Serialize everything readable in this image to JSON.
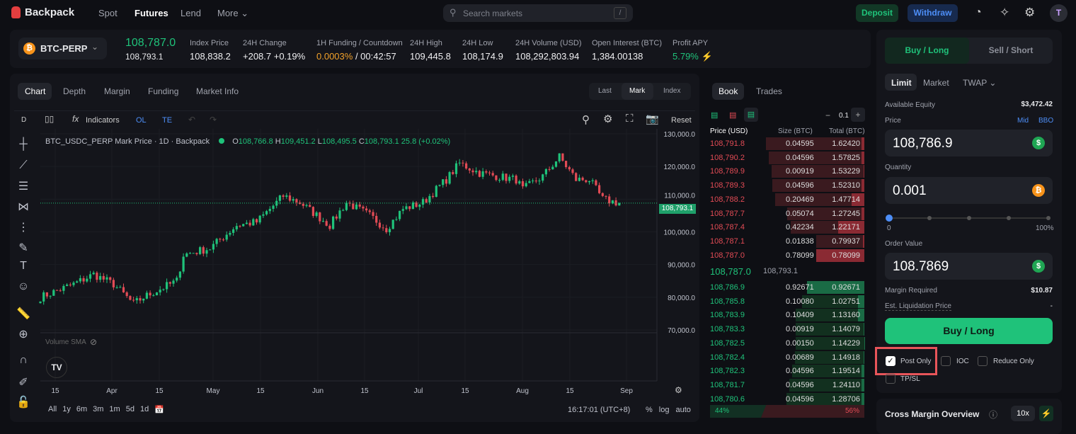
{
  "nav": {
    "brand": "Backpack",
    "links": [
      "Spot",
      "Futures",
      "Lend",
      "More"
    ],
    "search_placeholder": "Search markets",
    "search_key": "/",
    "deposit": "Deposit",
    "withdraw": "Withdraw",
    "avatar": "T"
  },
  "ticker": {
    "symbol": "BTC-PERP",
    "last": "108,787.0",
    "mark": "108,793.1",
    "stats": [
      {
        "label": "Index Price",
        "value": "108,838.2"
      },
      {
        "label": "24H Change",
        "value": "+208.7 +0.19%"
      },
      {
        "label": "1H Funding / Countdown",
        "value": "0.0003%",
        "value2": " / 00:42:57"
      },
      {
        "label": "24H High",
        "value": "109,445.8"
      },
      {
        "label": "24H Low",
        "value": "108,174.9"
      },
      {
        "label": "24H Volume (USD)",
        "value": "108,292,803.94"
      },
      {
        "label": "Open Interest (BTC)",
        "value": "1,384.00138"
      },
      {
        "label": "Profit APY",
        "value": "5.79%"
      }
    ]
  },
  "chart": {
    "tabs": [
      "Chart",
      "Depth",
      "Margin",
      "Funding",
      "Market Info"
    ],
    "price_types": [
      "Last",
      "Mark",
      "Index"
    ],
    "interval": "D",
    "indicators": "Indicators",
    "ol": "OL",
    "te": "TE",
    "reset": "Reset",
    "legend": {
      "title": "BTC_USDC_PERP Mark Price · 1D · Backpack",
      "o": "108,766.8",
      "h": "109,451.2",
      "l": "108,495.5",
      "c": "108,793.1",
      "chg": "25.8 (+0.02%)"
    },
    "volume_label": "Volume SMA",
    "last_price_label": "108,793.1",
    "ranges": [
      "All",
      "1y",
      "6m",
      "3m",
      "1m",
      "5d",
      "1d"
    ],
    "time": "16:17:01 (UTC+8)",
    "scale_opts": [
      "%",
      "log",
      "auto"
    ]
  },
  "chart_data": {
    "type": "candlestick",
    "title": "BTC_USDC_PERP Mark Price · 1D",
    "ylim": [
      70000,
      130000
    ],
    "yticks": [
      "130,000.0",
      "120,000.0",
      "110,000.0",
      "100,000.0",
      "90,000.0",
      "80,000.0",
      "70,000.0"
    ],
    "xticks": [
      "15",
      "Apr",
      "15",
      "May",
      "15",
      "Jun",
      "15",
      "Jul",
      "15",
      "Aug",
      "15",
      "Sep"
    ],
    "approx_close_anchors": [
      [
        0,
        80000
      ],
      [
        10,
        84000
      ],
      [
        16,
        87000
      ],
      [
        22,
        84000
      ],
      [
        28,
        78000
      ],
      [
        31,
        80000
      ],
      [
        41,
        85000
      ],
      [
        43,
        93000
      ],
      [
        51,
        95000
      ],
      [
        59,
        102000
      ],
      [
        65,
        103000
      ],
      [
        73,
        111000
      ],
      [
        78,
        109000
      ],
      [
        87,
        102000
      ],
      [
        92,
        109000
      ],
      [
        99,
        105000
      ],
      [
        104,
        101000
      ],
      [
        109,
        107000
      ],
      [
        115,
        109000
      ],
      [
        122,
        116000
      ],
      [
        126,
        121000
      ],
      [
        132,
        118000
      ],
      [
        143,
        116000
      ],
      [
        145,
        113000
      ],
      [
        151,
        117000
      ],
      [
        156,
        123000
      ],
      [
        161,
        116000
      ],
      [
        165,
        116000
      ],
      [
        169,
        110000
      ],
      [
        174,
        108793
      ]
    ]
  },
  "book": {
    "tabs": [
      "Book",
      "Trades"
    ],
    "step": "0.1",
    "headers": [
      "Price (USD)",
      "Size (BTC)",
      "Total (BTC)"
    ],
    "asks": [
      [
        "108,791.8",
        "0.04595",
        "1.62420"
      ],
      [
        "108,790.2",
        "0.04596",
        "1.57825"
      ],
      [
        "108,789.9",
        "0.00919",
        "1.53229"
      ],
      [
        "108,789.3",
        "0.04596",
        "1.52310"
      ],
      [
        "108,788.2",
        "0.20469",
        "1.47714"
      ],
      [
        "108,787.7",
        "0.05074",
        "1.27245"
      ],
      [
        "108,787.4",
        "0.42234",
        "1.22171"
      ],
      [
        "108,787.1",
        "0.01838",
        "0.79937"
      ],
      [
        "108,787.0",
        "0.78099",
        "0.78099"
      ]
    ],
    "mid": "108,787.0",
    "mid_mark": "108,793.1",
    "bids": [
      [
        "108,786.9",
        "0.92671",
        "0.92671"
      ],
      [
        "108,785.8",
        "0.10080",
        "1.02751"
      ],
      [
        "108,783.9",
        "0.10409",
        "1.13160"
      ],
      [
        "108,783.3",
        "0.00919",
        "1.14079"
      ],
      [
        "108,782.5",
        "0.00150",
        "1.14229"
      ],
      [
        "108,782.4",
        "0.00689",
        "1.14918"
      ],
      [
        "108,782.3",
        "0.04596",
        "1.19514"
      ],
      [
        "108,781.7",
        "0.04596",
        "1.24110"
      ],
      [
        "108,780.6",
        "0.04596",
        "1.28706"
      ]
    ],
    "buy_pct": "44%",
    "sell_pct": "56%"
  },
  "order": {
    "sides": [
      "Buy / Long",
      "Sell / Short"
    ],
    "types": [
      "Limit",
      "Market",
      "TWAP"
    ],
    "equity_label": "Available Equity",
    "equity": "$3,472.42",
    "price_label": "Price",
    "mid": "Mid",
    "bbo": "BBO",
    "price": "108,786.9",
    "qty_label": "Quantity",
    "qty": "0.001",
    "slider_min": "0",
    "slider_max": "100%",
    "slider_value": 0,
    "value_label": "Order Value",
    "value": "108.7869",
    "margin_label": "Margin Required",
    "margin": "$10.87",
    "liq_label": "Est. Liquidation Price",
    "liq": "-",
    "submit": "Buy / Long",
    "options": [
      {
        "label": "Post Only",
        "checked": true
      },
      {
        "label": "IOC",
        "checked": false
      },
      {
        "label": "Reduce Only",
        "checked": false
      },
      {
        "label": "TP/SL",
        "checked": false
      }
    ],
    "cross_margin": "Cross Margin Overview",
    "leverage": "10x"
  },
  "colors": {
    "up": "#1fc27a",
    "down": "#e24b55",
    "accent": "#4d8ef7"
  }
}
